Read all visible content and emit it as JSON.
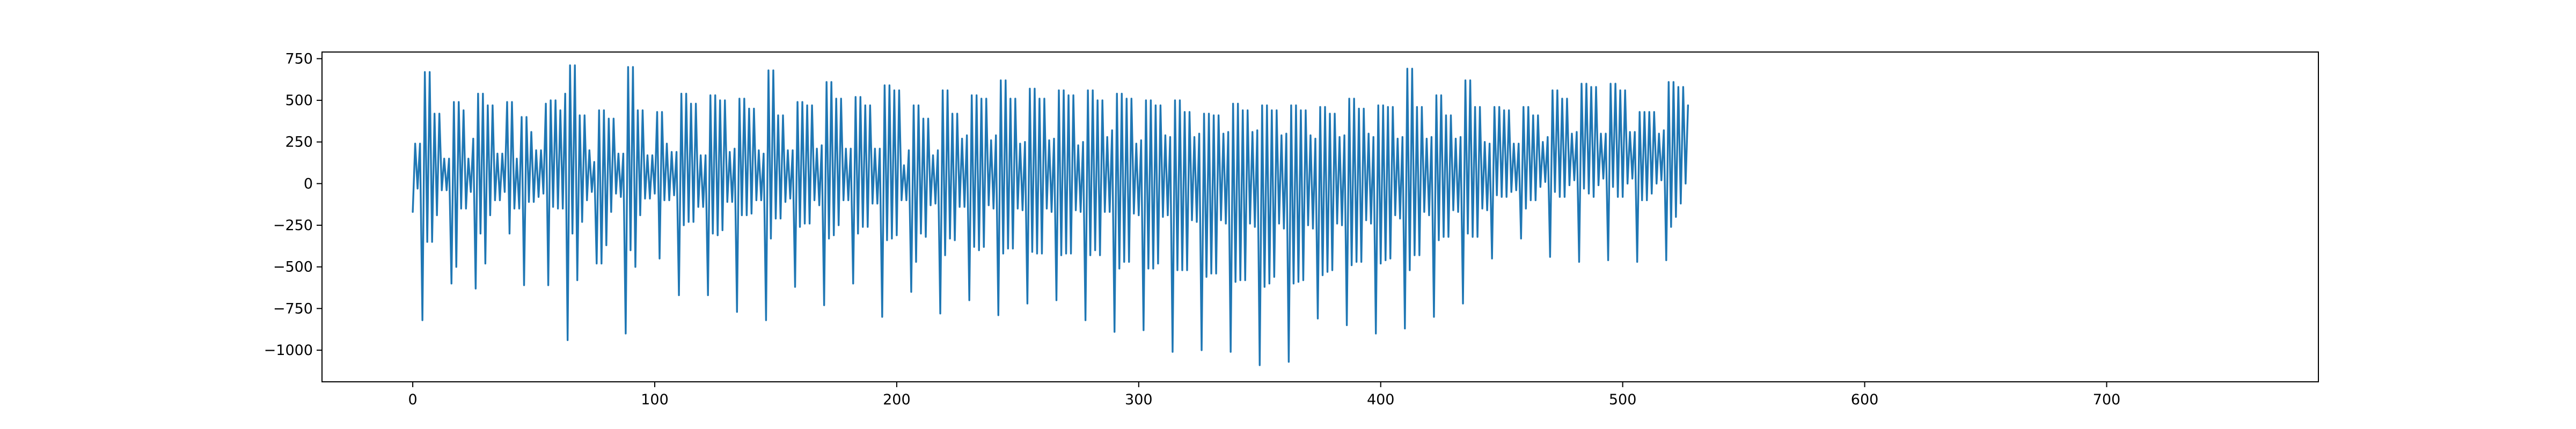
{
  "chart_data": {
    "type": "line",
    "title": "",
    "xlabel": "",
    "ylabel": "",
    "xlim": [
      -37.5,
      787.5
    ],
    "ylim": [
      -1190,
      790
    ],
    "xticks": [
      0,
      100,
      200,
      300,
      400,
      500,
      600,
      700
    ],
    "xtick_labels": [
      "0",
      "100",
      "200",
      "300",
      "400",
      "500",
      "600",
      "700"
    ],
    "yticks": [
      -1000,
      -750,
      -500,
      -250,
      0,
      250,
      500,
      750
    ],
    "ytick_labels": [
      "−1000",
      "−750",
      "−500",
      "−250",
      "0",
      "250",
      "500",
      "750"
    ],
    "grid": false,
    "legend": "none",
    "color": "#1f77b4",
    "series": [
      {
        "x_start": 0,
        "x_step": 1,
        "values": [
          -170,
          240,
          -30,
          240,
          -820,
          670,
          -350,
          670,
          -350,
          420,
          -190,
          420,
          -40,
          150,
          -40,
          150,
          -600,
          490,
          -500,
          490,
          -150,
          440,
          -150,
          150,
          -50,
          270,
          -630,
          540,
          -300,
          540,
          -480,
          470,
          -190,
          470,
          -100,
          180,
          -100,
          180,
          -50,
          490,
          -300,
          490,
          -150,
          150,
          -150,
          400,
          -610,
          400,
          -110,
          310,
          -110,
          200,
          -80,
          200,
          -60,
          480,
          -610,
          500,
          -140,
          500,
          -150,
          440,
          -150,
          540,
          -940,
          710,
          -300,
          710,
          -580,
          410,
          -230,
          410,
          -100,
          200,
          -50,
          130,
          -480,
          440,
          -480,
          440,
          -370,
          390,
          -170,
          390,
          -60,
          180,
          -80,
          180,
          -900,
          700,
          -400,
          700,
          -500,
          440,
          -190,
          440,
          -90,
          170,
          -90,
          170,
          -60,
          430,
          -450,
          430,
          -100,
          240,
          -100,
          190,
          -70,
          190,
          -670,
          540,
          -250,
          540,
          -230,
          480,
          -230,
          480,
          -140,
          170,
          -140,
          170,
          -670,
          530,
          -300,
          530,
          -310,
          500,
          -280,
          500,
          -110,
          190,
          -110,
          210,
          -770,
          510,
          -190,
          510,
          -190,
          450,
          -180,
          450,
          -100,
          200,
          -100,
          180,
          -820,
          680,
          -330,
          680,
          -210,
          410,
          -210,
          410,
          -110,
          200,
          -90,
          200,
          -620,
          490,
          -260,
          490,
          -240,
          470,
          -240,
          470,
          -100,
          210,
          -130,
          230,
          -730,
          610,
          -330,
          610,
          -310,
          510,
          -250,
          510,
          -100,
          210,
          -100,
          210,
          -600,
          520,
          -300,
          520,
          -260,
          470,
          -260,
          470,
          -120,
          210,
          -120,
          210,
          -800,
          590,
          -340,
          590,
          -330,
          560,
          -310,
          560,
          -100,
          110,
          -100,
          200,
          -650,
          470,
          -470,
          470,
          -300,
          390,
          -320,
          390,
          -130,
          170,
          -120,
          200,
          -780,
          560,
          -430,
          560,
          -330,
          420,
          -340,
          420,
          -140,
          270,
          -140,
          290,
          -700,
          530,
          -380,
          530,
          -400,
          510,
          -380,
          510,
          -130,
          260,
          -150,
          290,
          -790,
          620,
          -420,
          620,
          -390,
          510,
          -390,
          510,
          -150,
          240,
          -160,
          250,
          -720,
          570,
          -410,
          570,
          -420,
          510,
          -420,
          510,
          -150,
          260,
          -170,
          270,
          -700,
          560,
          -430,
          560,
          -420,
          530,
          -420,
          530,
          -160,
          230,
          -170,
          250,
          -820,
          560,
          -430,
          560,
          -400,
          500,
          -430,
          500,
          -170,
          280,
          -170,
          320,
          -890,
          540,
          -510,
          540,
          -470,
          510,
          -470,
          510,
          -180,
          240,
          -190,
          260,
          -880,
          500,
          -510,
          500,
          -510,
          470,
          -480,
          470,
          -200,
          290,
          -190,
          280,
          -1010,
          500,
          -520,
          500,
          -520,
          430,
          -520,
          430,
          -220,
          280,
          -230,
          300,
          -1000,
          420,
          -560,
          420,
          -540,
          410,
          -540,
          410,
          -220,
          300,
          -240,
          310,
          -1010,
          480,
          -590,
          480,
          -580,
          440,
          -580,
          440,
          -240,
          310,
          -260,
          320,
          -1090,
          470,
          -620,
          470,
          -600,
          440,
          -560,
          440,
          -240,
          290,
          -270,
          300,
          -1070,
          470,
          -600,
          470,
          -590,
          440,
          -580,
          440,
          -250,
          290,
          -270,
          270,
          -810,
          460,
          -550,
          460,
          -530,
          420,
          -520,
          420,
          -240,
          280,
          -250,
          290,
          -850,
          510,
          -490,
          510,
          -470,
          450,
          -470,
          450,
          -220,
          300,
          -240,
          280,
          -900,
          470,
          -480,
          470,
          -460,
          460,
          -450,
          460,
          -190,
          270,
          -210,
          280,
          -870,
          690,
          -520,
          690,
          -430,
          460,
          -430,
          460,
          -170,
          270,
          -190,
          280,
          -800,
          530,
          -340,
          530,
          -320,
          410,
          -320,
          410,
          -160,
          270,
          -170,
          280,
          -720,
          620,
          -300,
          620,
          -320,
          460,
          -320,
          460,
          -150,
          250,
          -160,
          240,
          -450,
          460,
          -70,
          460,
          -80,
          440,
          -80,
          440,
          -50,
          240,
          -40,
          240,
          -330,
          460,
          -150,
          460,
          -100,
          410,
          -100,
          410,
          -20,
          250,
          10,
          280,
          -440,
          560,
          -50,
          560,
          -80,
          510,
          -80,
          510,
          -10,
          300,
          20,
          310,
          -470,
          600,
          -30,
          600,
          -60,
          580,
          -80,
          580,
          -10,
          300,
          30,
          300,
          -460,
          600,
          -20,
          600,
          -80,
          560,
          -80,
          560,
          0,
          310,
          30,
          310,
          -470,
          430,
          -100,
          430,
          -100,
          430,
          -60,
          430,
          0,
          300,
          20,
          320,
          -460,
          610,
          -260,
          610,
          -200,
          580,
          -120,
          580,
          0,
          470
        ]
      }
    ]
  }
}
